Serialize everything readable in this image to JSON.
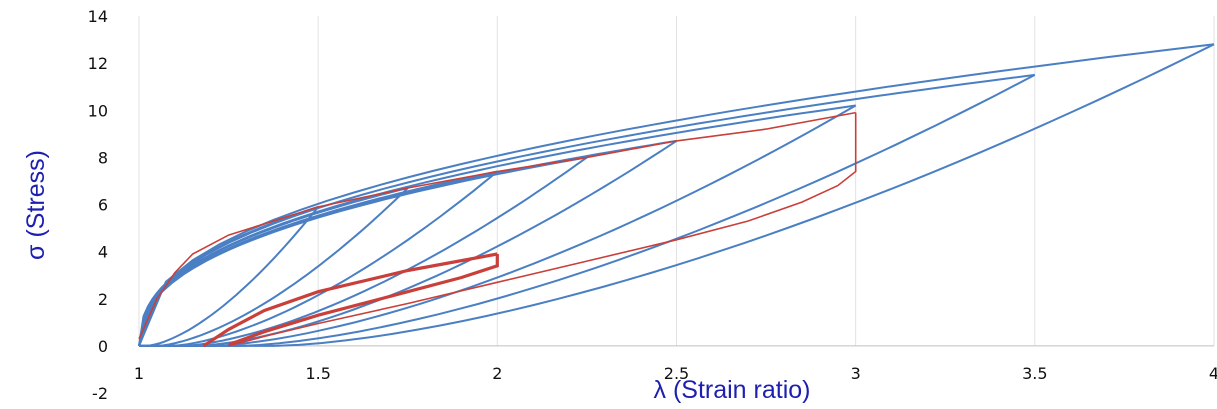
{
  "chart_data": {
    "type": "line",
    "title": "",
    "xlabel": "λ (Strain ratio)",
    "ylabel": "σ (Stress)",
    "xlim": [
      1,
      4
    ],
    "ylim": [
      -2,
      14
    ],
    "x_ticks": [
      "1",
      "1.5",
      "2",
      "2.5",
      "3",
      "3.5",
      "4"
    ],
    "y_ticks": [
      "14",
      "12",
      "10",
      "8",
      "6",
      "4",
      "2",
      "0",
      "-2"
    ],
    "grid": "vertical",
    "legend": "none",
    "colors": {
      "blue": "#4a7fc4",
      "red": "#c9403a",
      "axis_title": "#1d1fb0"
    },
    "series": [
      {
        "color": "blue",
        "peak_x": 1.5,
        "peak_y": 5.9,
        "unload_end_x": 1.02,
        "width": 2
      },
      {
        "color": "blue",
        "peak_x": 1.75,
        "peak_y": 6.7,
        "unload_end_x": 1.05,
        "width": 2
      },
      {
        "color": "blue",
        "peak_x": 2.0,
        "peak_y": 7.4,
        "unload_end_x": 1.09,
        "width": 2
      },
      {
        "color": "blue",
        "peak_x": 2.25,
        "peak_y": 8.0,
        "unload_end_x": 1.12,
        "width": 2
      },
      {
        "color": "blue",
        "peak_x": 2.5,
        "peak_y": 8.7,
        "unload_end_x": 1.16,
        "width": 2
      },
      {
        "color": "blue",
        "peak_x": 3.0,
        "peak_y": 10.2,
        "unload_end_x": 1.2,
        "width": 2
      },
      {
        "color": "blue",
        "peak_x": 3.5,
        "peak_y": 11.5,
        "unload_end_x": 1.28,
        "width": 2
      },
      {
        "color": "blue",
        "peak_x": 4.0,
        "peak_y": 12.8,
        "unload_end_x": 1.38,
        "width": 2
      }
    ],
    "red_envelope": [
      [
        1.0,
        0.3
      ],
      [
        1.05,
        2.0
      ],
      [
        1.1,
        3.1
      ],
      [
        1.15,
        3.9
      ],
      [
        1.25,
        4.7
      ],
      [
        1.5,
        5.9
      ],
      [
        1.75,
        6.7
      ],
      [
        2.0,
        7.4
      ],
      [
        2.25,
        8.0
      ],
      [
        2.5,
        8.7
      ],
      [
        2.75,
        9.2
      ],
      [
        3.0,
        9.9
      ]
    ],
    "red_unload_3": [
      [
        3.0,
        9.9
      ],
      [
        3.0,
        7.4
      ],
      [
        2.95,
        6.8
      ],
      [
        2.85,
        6.1
      ],
      [
        2.7,
        5.3
      ],
      [
        2.5,
        4.5
      ],
      [
        2.25,
        3.6
      ],
      [
        2.0,
        2.7
      ],
      [
        1.75,
        1.8
      ],
      [
        1.5,
        0.95
      ],
      [
        1.35,
        0.4
      ],
      [
        1.25,
        0.0
      ]
    ],
    "red_loop_2": {
      "load": [
        [
          1.18,
          0.0
        ],
        [
          1.25,
          0.7
        ],
        [
          1.35,
          1.5
        ],
        [
          1.5,
          2.3
        ],
        [
          1.75,
          3.2
        ],
        [
          2.0,
          3.9
        ]
      ],
      "unload": [
        [
          2.0,
          3.9
        ],
        [
          2.0,
          3.4
        ],
        [
          1.9,
          2.9
        ],
        [
          1.75,
          2.3
        ],
        [
          1.5,
          1.3
        ],
        [
          1.35,
          0.6
        ],
        [
          1.25,
          0.05
        ]
      ]
    }
  }
}
